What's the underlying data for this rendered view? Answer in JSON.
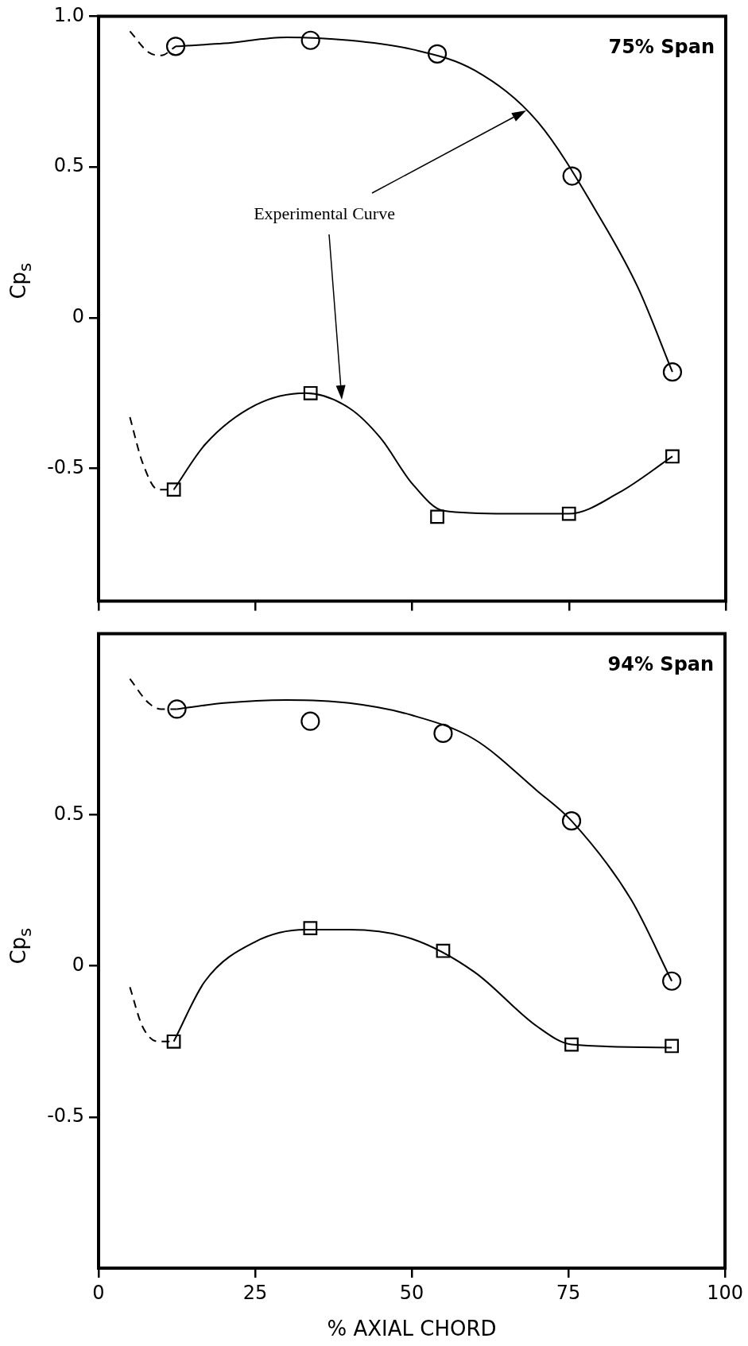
{
  "chart_data": [
    {
      "type": "scatter",
      "title": "75% Span",
      "ylabel": "Cp$_{s}$",
      "xlim": [
        0,
        100
      ],
      "xticks": [
        0,
        25,
        50,
        75,
        100
      ],
      "ylim": [
        -0.94,
        1.0
      ],
      "yticks": [
        -0.5,
        0,
        0.5,
        {
          "value": 1,
          "label": "1.0"
        }
      ],
      "tick_labels": "y",
      "grid": false,
      "annotations": [
        "Experimental Curve"
      ],
      "series": [
        {
          "type": "scatter",
          "marker": "circle",
          "color": "#000000",
          "x": [
            12.3,
            33.8,
            54,
            75.5,
            91.5
          ],
          "values": [
            0.9,
            0.92,
            0.875,
            0.47,
            -0.18
          ]
        },
        {
          "type": "scatter",
          "marker": "square",
          "color": "#000000",
          "x": [
            12,
            33.8,
            54,
            75,
            91.5
          ],
          "values": [
            -0.57,
            -0.25,
            -0.66,
            -0.65,
            -0.46
          ]
        },
        {
          "type": "line",
          "marker": "none",
          "line_style": "solid",
          "color": "#000000",
          "x": [
            12.3,
            20,
            30,
            40,
            50,
            60,
            70,
            80,
            86,
            91.5
          ],
          "values": [
            0.9,
            0.91,
            0.93,
            0.92,
            0.89,
            0.82,
            0.65,
            0.33,
            0.1,
            -0.18
          ]
        },
        {
          "type": "line",
          "marker": "none",
          "line_style": "solid",
          "color": "#000000",
          "x": [
            12,
            17,
            25,
            33,
            40,
            45,
            50,
            55,
            65,
            75,
            83,
            91.5
          ],
          "values": [
            -0.57,
            -0.42,
            -0.29,
            -0.25,
            -0.3,
            -0.4,
            -0.55,
            -0.64,
            -0.65,
            -0.65,
            -0.58,
            -0.46
          ]
        },
        {
          "type": "line",
          "marker": "none",
          "line_style": "dashed",
          "color": "#000000",
          "x": [
            5,
            8,
            10,
            12.3
          ],
          "values": [
            0.95,
            0.88,
            0.87,
            0.9
          ]
        },
        {
          "type": "line",
          "marker": "none",
          "line_style": "dashed",
          "color": "#000000",
          "x": [
            5,
            7,
            9.5,
            12
          ],
          "values": [
            -0.33,
            -0.48,
            -0.57,
            -0.57
          ]
        }
      ]
    },
    {
      "type": "scatter",
      "title": "94% Span",
      "xlabel": "% AXIAL CHORD",
      "ylabel": "Cp$_{s}$",
      "xlim": [
        0,
        100
      ],
      "xticks": [
        0,
        25,
        50,
        75,
        100
      ],
      "ylim": [
        -1.0,
        1.1
      ],
      "yticks": [
        -0.5,
        0,
        0.5
      ],
      "grid": false,
      "series": [
        {
          "type": "scatter",
          "marker": "circle",
          "color": "#000000",
          "x": [
            12.5,
            33.8,
            55,
            75.5,
            91.5
          ],
          "values": [
            0.85,
            0.81,
            0.77,
            0.48,
            -0.05
          ]
        },
        {
          "type": "scatter",
          "marker": "square",
          "color": "#000000",
          "x": [
            12,
            33.8,
            55,
            75.5,
            91.5
          ],
          "values": [
            -0.25,
            0.125,
            0.05,
            -0.26,
            -0.265
          ]
        },
        {
          "type": "line",
          "marker": "none",
          "line_style": "solid",
          "color": "#000000",
          "x": [
            12.5,
            20,
            30,
            40,
            50,
            60,
            70,
            75.5,
            85,
            91.5
          ],
          "values": [
            0.85,
            0.87,
            0.88,
            0.87,
            0.83,
            0.75,
            0.58,
            0.48,
            0.22,
            -0.05
          ]
        },
        {
          "type": "line",
          "marker": "none",
          "line_style": "solid",
          "color": "#000000",
          "x": [
            12,
            17,
            25,
            33,
            40,
            50,
            60,
            70,
            75.5,
            91.5
          ],
          "values": [
            -0.25,
            -0.05,
            0.08,
            0.12,
            0.12,
            0.09,
            -0.02,
            -0.2,
            -0.26,
            -0.27
          ]
        },
        {
          "type": "line",
          "marker": "none",
          "line_style": "dashed",
          "color": "#000000",
          "x": [
            5,
            8,
            10,
            12.5
          ],
          "values": [
            0.95,
            0.87,
            0.85,
            0.85
          ]
        },
        {
          "type": "line",
          "marker": "none",
          "line_style": "dashed",
          "color": "#000000",
          "x": [
            5,
            7,
            9.5,
            12
          ],
          "values": [
            -0.07,
            -0.2,
            -0.25,
            -0.25
          ]
        }
      ]
    }
  ]
}
